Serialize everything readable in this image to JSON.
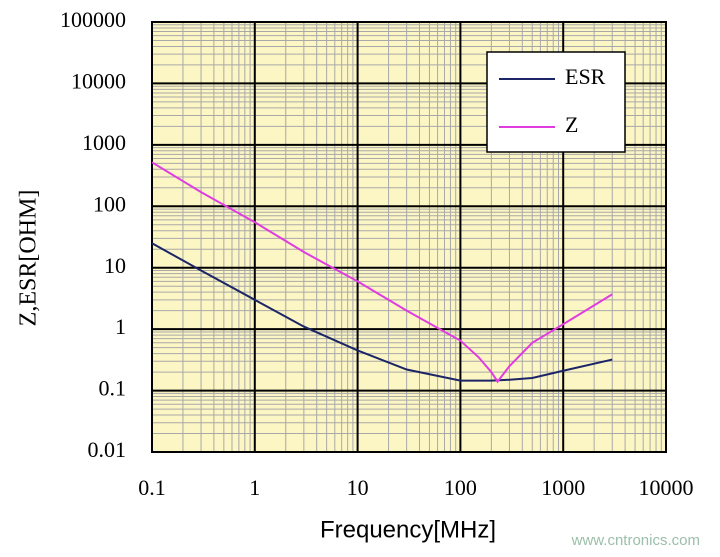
{
  "chart_data": {
    "type": "line",
    "xlabel": "Frequency[MHz]",
    "ylabel": "Z,ESR[OHM]",
    "xscale": "log",
    "yscale": "log",
    "xlim": [
      0.1,
      10000
    ],
    "xticks": [
      0.1,
      1,
      10,
      100,
      1000,
      10000
    ],
    "ylim": [
      0.01,
      100000
    ],
    "yticks": [
      0.01,
      0.1,
      1,
      10,
      100,
      1000,
      10000,
      100000
    ],
    "grid": true,
    "minor_grid": true,
    "background": "#fcf6c4",
    "legend": "upper right",
    "series": [
      {
        "name": "ESR",
        "color": "#1c2565",
        "x": [
          0.1,
          0.3,
          1,
          3,
          10,
          30,
          100,
          200,
          300,
          500,
          1000,
          3000
        ],
        "values": [
          25,
          9,
          3,
          1.1,
          0.45,
          0.22,
          0.145,
          0.145,
          0.15,
          0.16,
          0.21,
          0.32
        ]
      },
      {
        "name": "Z",
        "color": "#e03ce0",
        "x": [
          0.1,
          0.3,
          1,
          3,
          10,
          30,
          100,
          150,
          200,
          230,
          300,
          500,
          1000,
          3000
        ],
        "values": [
          520,
          170,
          55,
          18,
          6,
          2,
          0.65,
          0.35,
          0.2,
          0.14,
          0.25,
          0.6,
          1.2,
          3.7
        ]
      }
    ],
    "watermark": "www.cntronics.com"
  }
}
